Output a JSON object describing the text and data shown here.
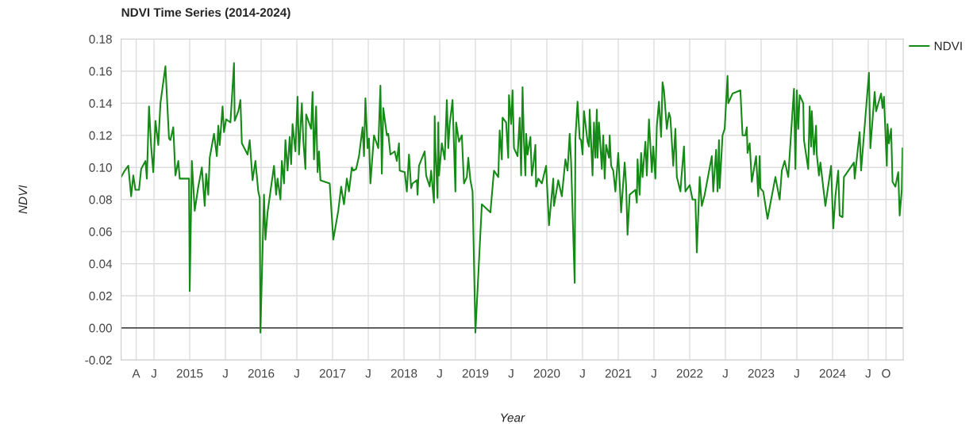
{
  "chart_data": {
    "type": "line",
    "title": "NDVI Time Series (2014-2024)",
    "xlabel": "Year",
    "ylabel": "NDVI",
    "xlim": [
      2014.04,
      2024.99
    ],
    "ylim": [
      -0.02,
      0.18
    ],
    "xticks": [
      {
        "value": 2014.25,
        "label": "A"
      },
      {
        "value": 2014.5,
        "label": "J"
      },
      2015,
      {
        "value": 2015.5,
        "label": "J"
      },
      2016,
      {
        "value": 2016.5,
        "label": "J"
      },
      2017,
      {
        "value": 2017.5,
        "label": "J"
      },
      2018,
      {
        "value": 2018.5,
        "label": "J"
      },
      2019,
      {
        "value": 2019.5,
        "label": "J"
      },
      2020,
      {
        "value": 2020.5,
        "label": "J"
      },
      2021,
      {
        "value": 2021.5,
        "label": "J"
      },
      2022,
      {
        "value": 2022.5,
        "label": "J"
      },
      2023,
      {
        "value": 2023.5,
        "label": "J"
      },
      2024,
      {
        "value": 2024.5,
        "label": "J"
      },
      {
        "value": 2024.75,
        "label": "O"
      }
    ],
    "yticks": [
      {
        "value": -0.02,
        "label": "-0.02"
      },
      {
        "value": 0,
        "label": "0.00"
      },
      {
        "value": 0.02,
        "label": "0.02"
      },
      {
        "value": 0.04,
        "label": "0.04"
      },
      {
        "value": 0.06,
        "label": "0.06"
      },
      {
        "value": 0.08,
        "label": "0.08"
      },
      {
        "value": 0.1,
        "label": "0.10"
      },
      {
        "value": 0.12,
        "label": "0.12"
      },
      {
        "value": 0.14,
        "label": "0.14"
      },
      {
        "value": 0.16,
        "label": "0.16"
      },
      {
        "value": 0.18,
        "label": "0.18"
      }
    ],
    "grid": true,
    "legend": "top right",
    "ref_lines": [
      {
        "axis": "y",
        "value": 0,
        "color": "#333333"
      }
    ],
    "series": [
      {
        "name": "NDVI",
        "color": "#168a16",
        "x": [
          2014.04,
          2014.09,
          2014.14,
          2014.18,
          2014.21,
          2014.24,
          2014.29,
          2014.32,
          2014.38,
          2014.4,
          2014.43,
          2014.46,
          2014.49,
          2014.52,
          2014.56,
          2014.59,
          2014.66,
          2014.71,
          2014.73,
          2014.77,
          2014.8,
          2014.84,
          2014.86,
          2014.99,
          2015.0,
          2015.03,
          2015.07,
          2015.12,
          2015.17,
          2015.21,
          2015.23,
          2015.26,
          2015.28,
          2015.34,
          2015.38,
          2015.4,
          2015.42,
          2015.46,
          2015.48,
          2015.51,
          2015.57,
          2015.6,
          2015.62,
          2015.63,
          2015.68,
          2015.71,
          2015.73,
          2015.81,
          2015.84,
          2015.88,
          2015.92,
          2015.96,
          2015.98,
          2015.99,
          2016.04,
          2016.06,
          2016.09,
          2016.18,
          2016.21,
          2016.23,
          2016.27,
          2016.29,
          2016.32,
          2016.34,
          2016.37,
          2016.4,
          2016.42,
          2016.44,
          2016.48,
          2016.51,
          2016.53,
          2016.57,
          2016.59,
          2016.62,
          2016.63,
          2016.7,
          2016.72,
          2016.74,
          2016.77,
          2016.79,
          2016.81,
          2016.83,
          2016.96,
          2017.01,
          2017.08,
          2017.12,
          2017.16,
          2017.2,
          2017.23,
          2017.27,
          2017.29,
          2017.33,
          2017.37,
          2017.42,
          2017.44,
          2017.46,
          2017.49,
          2017.51,
          2017.53,
          2017.58,
          2017.64,
          2017.67,
          2017.69,
          2017.71,
          2017.76,
          2017.78,
          2017.81,
          2017.87,
          2017.9,
          2017.93,
          2017.94,
          2018.01,
          2018.04,
          2018.07,
          2018.1,
          2018.12,
          2018.18,
          2018.19,
          2018.21,
          2018.29,
          2018.31,
          2018.36,
          2018.38,
          2018.42,
          2018.43,
          2018.44,
          2018.47,
          2018.48,
          2018.49,
          2018.53,
          2018.57,
          2018.6,
          2018.62,
          2018.64,
          2018.68,
          2018.72,
          2018.73,
          2018.77,
          2018.81,
          2018.84,
          2018.88,
          2018.9,
          2018.93,
          2018.96,
          2019.0,
          2019.09,
          2019.21,
          2019.26,
          2019.32,
          2019.34,
          2019.37,
          2019.38,
          2019.43,
          2019.46,
          2019.47,
          2019.5,
          2019.52,
          2019.54,
          2019.59,
          2019.62,
          2019.64,
          2019.66,
          2019.68,
          2019.7,
          2019.71,
          2019.73,
          2019.77,
          2019.79,
          2019.81,
          2019.84,
          2019.85,
          2019.88,
          2019.93,
          2019.99,
          2020.03,
          2020.09,
          2020.1,
          2020.16,
          2020.21,
          2020.26,
          2020.29,
          2020.32,
          2020.34,
          2020.39,
          2020.4,
          2020.43,
          2020.46,
          2020.48,
          2020.5,
          2020.52,
          2020.57,
          2020.59,
          2020.6,
          2020.64,
          2020.66,
          2020.68,
          2020.7,
          2020.71,
          2020.73,
          2020.77,
          2020.79,
          2020.81,
          2020.83,
          2020.87,
          2020.88,
          2020.9,
          2020.93,
          2020.96,
          2021.0,
          2021.04,
          2021.09,
          2021.11,
          2021.13,
          2021.16,
          2021.24,
          2021.26,
          2021.27,
          2021.3,
          2021.32,
          2021.34,
          2021.38,
          2021.4,
          2021.43,
          2021.47,
          2021.49,
          2021.52,
          2021.54,
          2021.57,
          2021.6,
          2021.62,
          2021.64,
          2021.68,
          2021.71,
          2021.73,
          2021.77,
          2021.8,
          2021.82,
          2021.87,
          2021.88,
          2021.92,
          2021.94,
          2022.0,
          2022.04,
          2022.08,
          2022.1,
          2022.14,
          2022.17,
          2022.21,
          2022.31,
          2022.33,
          2022.37,
          2022.39,
          2022.41,
          2022.42,
          2022.46,
          2022.49,
          2022.53,
          2022.54,
          2022.6,
          2022.71,
          2022.74,
          2022.78,
          2022.8,
          2022.81,
          2022.84,
          2022.87,
          2022.93,
          2022.96,
          2022.98,
          2022.99,
          2023.03,
          2023.09,
          2023.2,
          2023.26,
          2023.29,
          2023.33,
          2023.38,
          2023.46,
          2023.48,
          2023.5,
          2023.52,
          2023.54,
          2023.59,
          2023.6,
          2023.66,
          2023.68,
          2023.7,
          2023.71,
          2023.74,
          2023.77,
          2023.78,
          2023.81,
          2023.83,
          2023.9,
          2023.98,
          2024.01,
          2024.04,
          2024.08,
          2024.1,
          2024.14,
          2024.16,
          2024.3,
          2024.31,
          2024.38,
          2024.4,
          2024.51,
          2024.53,
          2024.59,
          2024.61,
          2024.68,
          2024.7,
          2024.72,
          2024.76,
          2024.77,
          2024.79,
          2024.82,
          2024.83,
          2024.84,
          2024.88,
          2024.92,
          2024.94,
          2024.97,
          2024.98
        ],
        "values": [
          0.094,
          0.098,
          0.101,
          0.082,
          0.095,
          0.086,
          0.086,
          0.099,
          0.104,
          0.093,
          0.138,
          0.113,
          0.097,
          0.129,
          0.114,
          0.14,
          0.163,
          0.118,
          0.117,
          0.125,
          0.095,
          0.104,
          0.093,
          0.093,
          0.023,
          0.104,
          0.073,
          0.088,
          0.1,
          0.076,
          0.096,
          0.083,
          0.106,
          0.121,
          0.107,
          0.126,
          0.114,
          0.138,
          0.122,
          0.13,
          0.128,
          0.15,
          0.165,
          0.129,
          0.135,
          0.142,
          0.115,
          0.108,
          0.117,
          0.092,
          0.104,
          0.085,
          0.081,
          -0.003,
          0.083,
          0.055,
          0.072,
          0.101,
          0.083,
          0.093,
          0.08,
          0.104,
          0.09,
          0.117,
          0.098,
          0.119,
          0.102,
          0.127,
          0.11,
          0.144,
          0.108,
          0.14,
          0.117,
          0.099,
          0.133,
          0.124,
          0.147,
          0.105,
          0.138,
          0.097,
          0.11,
          0.092,
          0.09,
          0.055,
          0.073,
          0.088,
          0.077,
          0.093,
          0.085,
          0.1,
          0.098,
          0.099,
          0.107,
          0.125,
          0.107,
          0.143,
          0.112,
          0.118,
          0.09,
          0.12,
          0.112,
          0.151,
          0.096,
          0.137,
          0.12,
          0.121,
          0.108,
          0.11,
          0.104,
          0.115,
          0.098,
          0.097,
          0.085,
          0.108,
          0.087,
          0.09,
          0.092,
          0.083,
          0.101,
          0.11,
          0.095,
          0.088,
          0.098,
          0.078,
          0.132,
          0.112,
          0.081,
          0.128,
          0.095,
          0.115,
          0.105,
          0.142,
          0.112,
          0.127,
          0.142,
          0.085,
          0.128,
          0.116,
          0.12,
          0.09,
          0.094,
          0.106,
          0.092,
          0.085,
          -0.003,
          0.077,
          0.072,
          0.098,
          0.094,
          0.123,
          0.105,
          0.131,
          0.128,
          0.106,
          0.145,
          0.127,
          0.148,
          0.112,
          0.107,
          0.131,
          0.095,
          0.15,
          0.115,
          0.095,
          0.121,
          0.108,
          0.119,
          0.095,
          0.101,
          0.114,
          0.088,
          0.093,
          0.09,
          0.101,
          0.064,
          0.093,
          0.076,
          0.092,
          0.082,
          0.105,
          0.098,
          0.121,
          0.103,
          0.028,
          0.118,
          0.141,
          0.118,
          0.117,
          0.108,
          0.135,
          0.116,
          0.113,
          0.136,
          0.095,
          0.128,
          0.106,
          0.136,
          0.106,
          0.128,
          0.099,
          0.12,
          0.093,
          0.114,
          0.106,
          0.12,
          0.101,
          0.098,
          0.085,
          0.109,
          0.072,
          0.103,
          0.089,
          0.058,
          0.083,
          0.086,
          0.078,
          0.105,
          0.083,
          0.109,
          0.094,
          0.116,
          0.095,
          0.13,
          0.097,
          0.113,
          0.093,
          0.126,
          0.141,
          0.119,
          0.153,
          0.148,
          0.124,
          0.134,
          0.131,
          0.101,
          0.124,
          0.094,
          0.085,
          0.091,
          0.113,
          0.085,
          0.089,
          0.08,
          0.08,
          0.047,
          0.094,
          0.076,
          0.083,
          0.107,
          0.085,
          0.111,
          0.085,
          0.117,
          0.087,
          0.12,
          0.124,
          0.157,
          0.14,
          0.146,
          0.148,
          0.12,
          0.12,
          0.125,
          0.109,
          0.115,
          0.091,
          0.107,
          0.082,
          0.107,
          0.087,
          0.085,
          0.068,
          0.094,
          0.08,
          0.098,
          0.104,
          0.094,
          0.149,
          0.099,
          0.148,
          0.124,
          0.145,
          0.14,
          0.117,
          0.099,
          0.138,
          0.113,
          0.135,
          0.108,
          0.126,
          0.108,
          0.095,
          0.103,
          0.076,
          0.101,
          0.062,
          0.082,
          0.098,
          0.07,
          0.069,
          0.094,
          0.103,
          0.093,
          0.122,
          0.098,
          0.159,
          0.112,
          0.147,
          0.135,
          0.146,
          0.137,
          0.144,
          0.101,
          0.127,
          0.115,
          0.124,
          0.108,
          0.091,
          0.088,
          0.097,
          0.07,
          0.086,
          0.112
        ]
      }
    ]
  }
}
